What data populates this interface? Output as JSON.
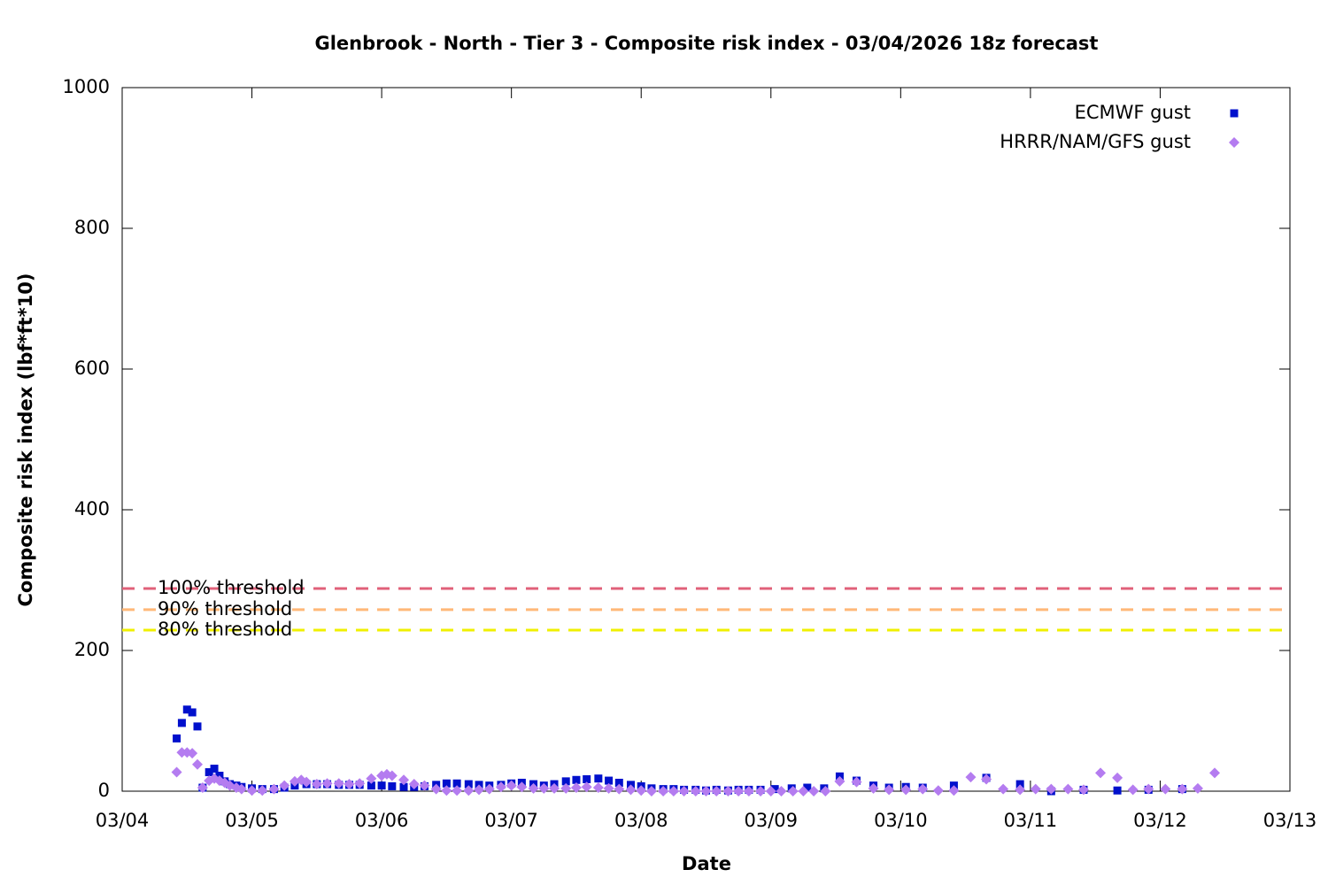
{
  "chart_data": {
    "type": "scatter",
    "title": "Glenbrook - North - Tier 3 - Composite risk index - 03/04/2026 18z forecast",
    "x_label": "Date",
    "y_label": "Composite risk index (lbf*ft*10)",
    "xlim": [
      0,
      9
    ],
    "xticks": [
      {
        "value": 0,
        "label": "03/04"
      },
      {
        "value": 1,
        "label": "03/05"
      },
      {
        "value": 2,
        "label": "03/06"
      },
      {
        "value": 3,
        "label": "03/07"
      },
      {
        "value": 4,
        "label": "03/08"
      },
      {
        "value": 5,
        "label": "03/09"
      },
      {
        "value": 6,
        "label": "03/10"
      },
      {
        "value": 7,
        "label": "03/11"
      },
      {
        "value": 8,
        "label": "03/12"
      },
      {
        "value": 9,
        "label": "03/13"
      }
    ],
    "ylim": [
      0,
      1000
    ],
    "yticks": [
      0,
      200,
      400,
      600,
      800,
      1000
    ],
    "legend": "top-right",
    "thresholds": [
      {
        "name": "100% threshold",
        "value": 288,
        "color": "#e0607a"
      },
      {
        "name": "90% threshold",
        "value": 258,
        "color": "#ffb878"
      },
      {
        "name": "80% threshold",
        "value": 229,
        "color": "#f0f000"
      }
    ],
    "series": [
      {
        "name": "ECMWF gust",
        "color": "#0010cc",
        "marker": "square",
        "x": [
          0.42,
          0.46,
          0.5,
          0.54,
          0.58,
          0.62,
          0.67,
          0.71,
          0.75,
          0.79,
          0.83,
          0.88,
          0.92,
          1.0,
          1.08,
          1.17,
          1.25,
          1.33,
          1.42,
          1.5,
          1.58,
          1.67,
          1.75,
          1.83,
          1.92,
          2.0,
          2.08,
          2.17,
          2.25,
          2.33,
          2.42,
          2.5,
          2.58,
          2.67,
          2.75,
          2.83,
          2.92,
          3.0,
          3.08,
          3.17,
          3.25,
          3.33,
          3.42,
          3.5,
          3.58,
          3.67,
          3.75,
          3.83,
          3.92,
          4.0,
          4.08,
          4.17,
          4.25,
          4.33,
          4.42,
          4.5,
          4.58,
          4.67,
          4.75,
          4.83,
          4.92,
          5.03,
          5.16,
          5.28,
          5.41,
          5.53,
          5.66,
          5.79,
          5.91,
          6.04,
          6.17,
          6.41,
          6.66,
          6.92,
          7.16,
          7.41,
          7.67,
          7.91,
          8.17
        ],
        "values": [
          75,
          97,
          116,
          112,
          92,
          5,
          27,
          32,
          22,
          14,
          10,
          8,
          6,
          4,
          3,
          3,
          5,
          8,
          10,
          10,
          10,
          9,
          9,
          9,
          8,
          8,
          7,
          6,
          6,
          7,
          9,
          11,
          11,
          10,
          9,
          8,
          9,
          11,
          12,
          10,
          8,
          10,
          14,
          16,
          17,
          18,
          15,
          12,
          9,
          7,
          4,
          3,
          3,
          2,
          2,
          1,
          2,
          1,
          2,
          2,
          2,
          3,
          4,
          5,
          4,
          21,
          15,
          8,
          5,
          6,
          5,
          8,
          19,
          10,
          0,
          2,
          1,
          2,
          3
        ]
      },
      {
        "name": "HRRR/NAM/GFS gust",
        "color": "#b47cf0",
        "marker": "diamond",
        "x": [
          0.42,
          0.46,
          0.5,
          0.54,
          0.58,
          0.62,
          0.67,
          0.71,
          0.75,
          0.79,
          0.83,
          0.88,
          0.92,
          1.0,
          1.08,
          1.17,
          1.25,
          1.33,
          1.38,
          1.42,
          1.5,
          1.58,
          1.67,
          1.75,
          1.83,
          1.92,
          2.0,
          2.04,
          2.08,
          2.17,
          2.25,
          2.33,
          2.42,
          2.5,
          2.58,
          2.67,
          2.75,
          2.83,
          2.92,
          3.0,
          3.08,
          3.17,
          3.25,
          3.33,
          3.42,
          3.5,
          3.58,
          3.67,
          3.75,
          3.83,
          3.92,
          4.0,
          4.08,
          4.17,
          4.25,
          4.33,
          4.42,
          4.5,
          4.58,
          4.67,
          4.75,
          4.83,
          4.92,
          5.0,
          5.08,
          5.17,
          5.25,
          5.33,
          5.42,
          5.53,
          5.66,
          5.79,
          5.91,
          6.04,
          6.17,
          6.29,
          6.41,
          6.54,
          6.66,
          6.79,
          6.92,
          7.04,
          7.16,
          7.29,
          7.41,
          7.54,
          7.67,
          7.79,
          7.91,
          8.04,
          8.17,
          8.29,
          8.42
        ],
        "values": [
          27,
          55,
          55,
          54,
          38,
          5,
          15,
          18,
          15,
          12,
          8,
          5,
          3,
          1,
          1,
          3,
          8,
          14,
          16,
          13,
          10,
          11,
          11,
          10,
          11,
          18,
          22,
          24,
          22,
          16,
          10,
          8,
          3,
          1,
          1,
          1,
          2,
          3,
          6,
          8,
          6,
          4,
          4,
          4,
          4,
          5,
          6,
          5,
          4,
          3,
          2,
          1,
          0,
          0,
          0,
          0,
          0,
          0,
          0,
          0,
          0,
          0,
          0,
          0,
          0,
          0,
          0,
          0,
          0,
          14,
          13,
          4,
          2,
          2,
          3,
          1,
          1,
          20,
          17,
          3,
          2,
          3,
          3,
          3,
          2,
          26,
          19,
          2,
          3,
          3,
          3,
          4,
          26
        ]
      }
    ]
  }
}
